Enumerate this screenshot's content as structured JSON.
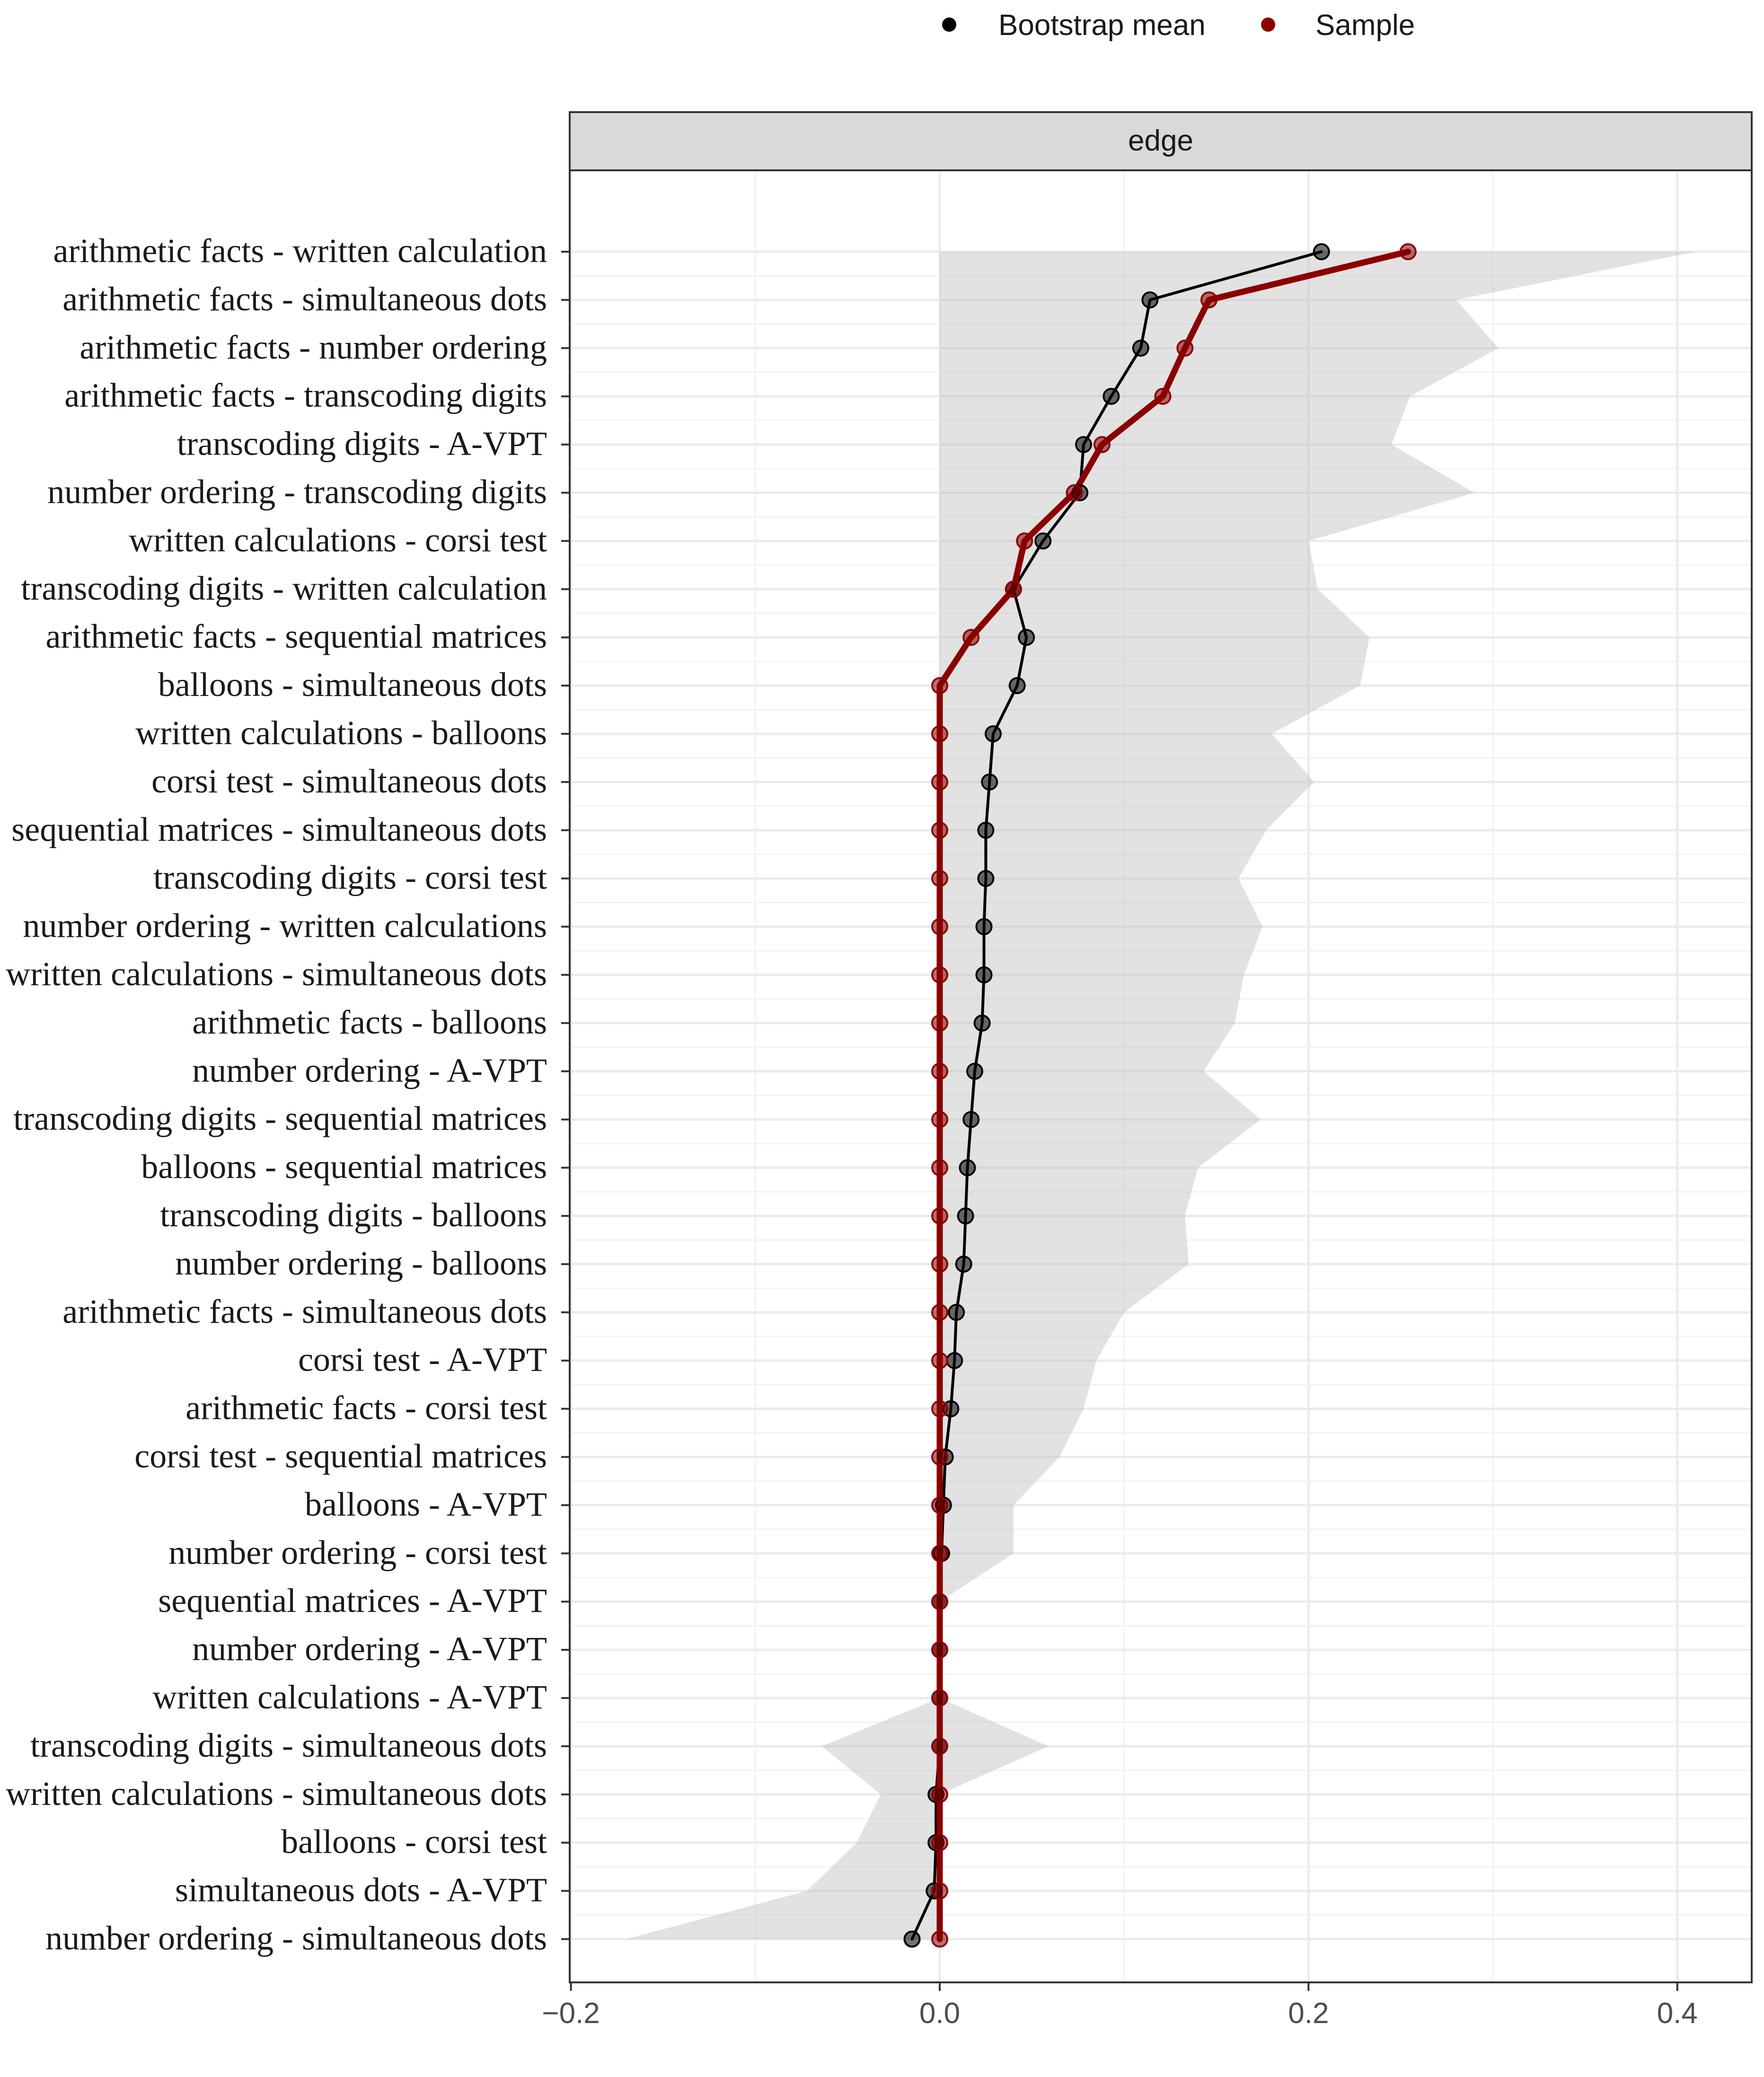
{
  "legend": {
    "items": [
      {
        "label": "Bootstrap mean",
        "color": "#000000"
      },
      {
        "label": "Sample",
        "color": "#8B0000"
      }
    ]
  },
  "facet": {
    "strip_label": "edge"
  },
  "chart_data": {
    "type": "line",
    "facet": "edge",
    "categories": [
      "arithmetic facts - written calculation",
      "arithmetic facts - simultaneous dots",
      "arithmetic facts - number ordering",
      "arithmetic facts - transcoding digits",
      "transcoding digits - A-VPT",
      "number ordering - transcoding digits",
      "written calculations - corsi test",
      "transcoding digits - written calculation",
      "arithmetic facts - sequential matrices",
      "balloons - simultaneous dots",
      "written calculations - balloons",
      "corsi test - simultaneous dots",
      "sequential matrices - simultaneous dots",
      "transcoding digits - corsi test",
      "number ordering - written calculations",
      "written calculations - simultaneous dots",
      "arithmetic facts - balloons",
      "number ordering - A-VPT",
      "transcoding digits - sequential matrices",
      "balloons - sequential matrices",
      "transcoding digits - balloons",
      "number ordering - balloons",
      "arithmetic facts - simultaneous dots",
      "corsi test - A-VPT",
      "arithmetic facts - corsi test",
      "corsi test - sequential matrices",
      "balloons - A-VPT",
      "number ordering - corsi test",
      "sequential matrices - A-VPT",
      "number ordering - A-VPT",
      "written calculations - A-VPT",
      "transcoding digits - simultaneous dots",
      "written calculations - simultaneous dots",
      "balloons - corsi test",
      "simultaneous dots - A-VPT",
      "number ordering - simultaneous dots"
    ],
    "series": [
      {
        "name": "Bootstrap mean",
        "color": "#000000",
        "values": [
          0.207,
          0.114,
          0.109,
          0.093,
          0.078,
          0.076,
          0.056,
          0.04,
          0.047,
          0.042,
          0.029,
          0.027,
          0.025,
          0.025,
          0.024,
          0.024,
          0.023,
          0.019,
          0.017,
          0.015,
          0.014,
          0.013,
          0.009,
          0.008,
          0.006,
          0.003,
          0.002,
          0.001,
          0.0,
          0.0,
          0.0,
          0.0,
          -0.002,
          -0.002,
          -0.003,
          -0.015
        ]
      },
      {
        "name": "Sample",
        "color": "#8B0000",
        "values": [
          0.254,
          0.146,
          0.133,
          0.121,
          0.088,
          0.073,
          0.046,
          0.04,
          0.017,
          0.0,
          0.0,
          0.0,
          0.0,
          0.0,
          0.0,
          0.0,
          0.0,
          0.0,
          0.0,
          0.0,
          0.0,
          0.0,
          0.0,
          0.0,
          0.0,
          0.0,
          0.0,
          0.0,
          0.0,
          0.0,
          0.0,
          0.0,
          0.0,
          0.0,
          0.0,
          0.0
        ]
      }
    ],
    "ci_band": {
      "lower": [
        0,
        0,
        0,
        0,
        0,
        0,
        0,
        0,
        0,
        0,
        0,
        0,
        0,
        0,
        0,
        0,
        0,
        0,
        0,
        0,
        0,
        0,
        0,
        0,
        0,
        0,
        0,
        0,
        0,
        0,
        0,
        -0.064,
        -0.032,
        -0.045,
        -0.072,
        -0.17
      ],
      "upper": [
        0.41,
        0.28,
        0.303,
        0.255,
        0.245,
        0.29,
        0.2,
        0.205,
        0.233,
        0.228,
        0.18,
        0.203,
        0.177,
        0.162,
        0.175,
        0.165,
        0.16,
        0.143,
        0.174,
        0.14,
        0.133,
        0.135,
        0.1,
        0.085,
        0.078,
        0.065,
        0.04,
        0.04,
        0.0,
        0.0,
        0.0,
        0.059,
        0.0,
        0.0,
        0.0,
        0.0
      ]
    },
    "xlim": [
      -0.2,
      0.44
    ],
    "x_ticks": [
      -0.2,
      0.0,
      0.2,
      0.4
    ],
    "x_tick_labels": [
      "−0.2",
      "0.0",
      "0.2",
      "0.4"
    ],
    "xlabel": "",
    "ylabel": "",
    "grid": true,
    "legend_position": "top"
  }
}
